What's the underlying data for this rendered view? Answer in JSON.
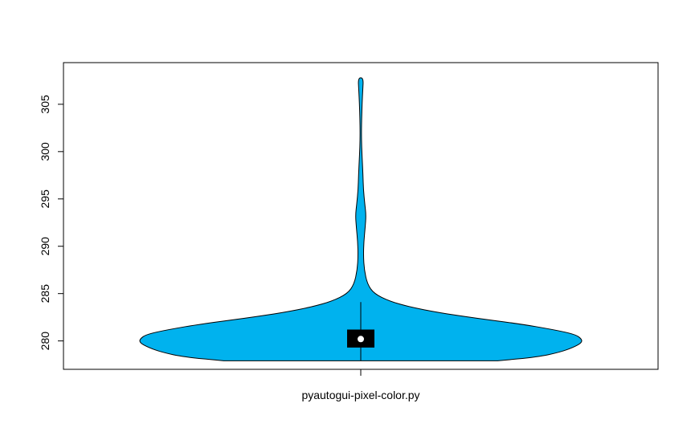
{
  "chart_data": {
    "type": "violin",
    "title": "",
    "xlabel": "",
    "ylabel": "",
    "categories": [
      "pyautogui-pixel-color.py"
    ],
    "y_ticks": [
      280,
      285,
      290,
      295,
      300,
      305
    ],
    "ylim": [
      277,
      309.4
    ],
    "grid": false,
    "legend": "none",
    "fill_color": "#00B2EE",
    "box_color": "#000000",
    "median_color": "#ffffff",
    "series": [
      {
        "category": "pyautogui-pixel-color.py",
        "min": 277.9,
        "max": 307.8,
        "q1": 279.3,
        "median": 280.2,
        "q3": 281.2,
        "whisker_low": 277.9,
        "whisker_high": 284.1,
        "density": [
          [
            277.9,
            0.62
          ],
          [
            278.3,
            0.8
          ],
          [
            278.8,
            0.9
          ],
          [
            279.3,
            0.96
          ],
          [
            279.8,
            1.0
          ],
          [
            280.2,
            1.0
          ],
          [
            280.7,
            0.97
          ],
          [
            281.2,
            0.87
          ],
          [
            281.8,
            0.72
          ],
          [
            282.4,
            0.52
          ],
          [
            283.0,
            0.35
          ],
          [
            283.6,
            0.22
          ],
          [
            284.2,
            0.13
          ],
          [
            285.0,
            0.06
          ],
          [
            286.0,
            0.03
          ],
          [
            287.5,
            0.016
          ],
          [
            289.0,
            0.012
          ],
          [
            290.5,
            0.014
          ],
          [
            292.0,
            0.02
          ],
          [
            293.3,
            0.024
          ],
          [
            294.5,
            0.018
          ],
          [
            296.0,
            0.012
          ],
          [
            297.5,
            0.01
          ],
          [
            299.0,
            0.007
          ],
          [
            300.5,
            0.004
          ],
          [
            302.0,
            0.003
          ],
          [
            303.5,
            0.004
          ],
          [
            305.0,
            0.006
          ],
          [
            306.5,
            0.009
          ],
          [
            307.8,
            0.012
          ]
        ]
      }
    ]
  }
}
